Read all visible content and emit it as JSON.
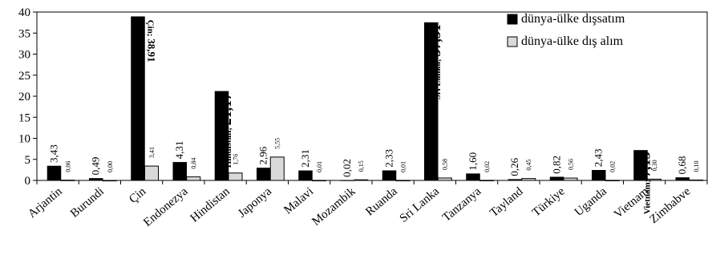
{
  "chart_data": {
    "type": "bar",
    "categories": [
      "Arjantin",
      "Burundi",
      "Çin",
      "Endonezya",
      "Hindistan",
      "Japonya",
      "Malavi",
      "Mozambik",
      "Ruanda",
      "Sri Lanka",
      "Tanzanya",
      "Tayland",
      "Türkiye",
      "Uganda",
      "Vietnam",
      "Zimbabve"
    ],
    "series": [
      {
        "name": "dünya-ülke dışsatım",
        "values": [
          3.43,
          0.49,
          38.91,
          4.31,
          21.17,
          2.96,
          2.31,
          0.02,
          2.33,
          37.51,
          1.6,
          0.26,
          0.82,
          2.43,
          7.15,
          0.68
        ],
        "labels": [
          "3,43",
          "0,49",
          "Çin; 38,91",
          "4,31",
          "Hindistan; 21,17",
          "2,96",
          "2,31",
          "0,02",
          "2,33",
          "Sri Lanka; 37,51",
          "1,60",
          "0,26",
          "0,82",
          "2,43",
          "Vietnam; 7,15",
          "0,68"
        ],
        "color": "#000000"
      },
      {
        "name": "dünya-ülke dış alım",
        "values": [
          0.06,
          0.0,
          3.41,
          0.84,
          1.76,
          5.55,
          0.01,
          0.15,
          0.01,
          0.58,
          0.02,
          0.45,
          0.56,
          0.02,
          0.3,
          0.1
        ],
        "labels": [
          "0,06",
          "0,00",
          "3,41",
          "0,84",
          "1,76",
          "5,55",
          "0,01",
          "0,15",
          "0,01",
          "0,58",
          "0,02",
          "0,45",
          "0,56",
          "0,02",
          "0,30",
          "0,10"
        ],
        "color": "#d9d9d9"
      }
    ],
    "ylim": [
      0,
      40
    ],
    "yticks": [
      "0",
      "5",
      "10",
      "15",
      "20",
      "25",
      "30",
      "35",
      "40"
    ],
    "grid": false,
    "legend": "top-right"
  }
}
